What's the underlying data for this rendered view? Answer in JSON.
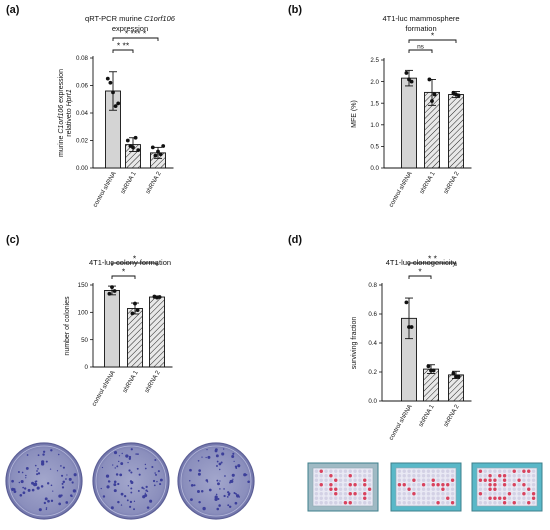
{
  "chart_data": [
    {
      "panel": "(a)",
      "type": "bar",
      "title_lines": [
        "qRT-PCR murine C1orf106",
        "expression"
      ],
      "title_italic_word": "C1orf106",
      "ylabel_lines": [
        "murine C1orf106 expression",
        "relativeto Hprt1"
      ],
      "categories": [
        "control shRNA",
        "shRNA 1",
        "shRNA 2"
      ],
      "values": [
        0.056,
        0.017,
        0.011
      ],
      "errors": [
        0.014,
        0.005,
        0.004
      ],
      "points": [
        [
          0.065,
          0.062,
          0.055,
          0.045,
          0.047
        ],
        [
          0.02,
          0.016,
          0.015,
          0.022,
          0.013
        ],
        [
          0.015,
          0.009,
          0.012,
          0.01,
          0.016
        ]
      ],
      "ylim": [
        0,
        0.08
      ],
      "yticks": [
        "0.00",
        "0.02",
        "0.04",
        "0.06",
        "0.08"
      ],
      "ytick_values": [
        0,
        0.02,
        0.04,
        0.06,
        0.08
      ],
      "significance": [
        {
          "from": 0,
          "to": 1,
          "label": "* **"
        },
        {
          "from": 0,
          "to": 2,
          "label": "* *** *"
        }
      ],
      "hatched": [
        false,
        true,
        true
      ]
    },
    {
      "panel": "(b)",
      "type": "bar",
      "title_lines": [
        "4T1-luc mammosphere",
        "formation"
      ],
      "ylabel_lines": [
        "MFE (%)"
      ],
      "categories": [
        "control shRNA",
        "shRNA 1",
        "shRNA 2"
      ],
      "values": [
        2.08,
        1.75,
        1.7
      ],
      "errors": [
        0.18,
        0.3,
        0.07
      ],
      "points": [
        [
          2.2,
          2.05,
          2.0
        ],
        [
          2.05,
          1.55,
          1.7
        ],
        [
          1.74,
          1.7,
          1.68
        ]
      ],
      "ylim": [
        0,
        2.5
      ],
      "yticks": [
        "0.0",
        "0.5",
        "1.0",
        "1.5",
        "2.0",
        "2.5"
      ],
      "ytick_values": [
        0,
        0.5,
        1.0,
        1.5,
        2.0,
        2.5
      ],
      "significance": [
        {
          "from": 0,
          "to": 1,
          "label": "ns"
        },
        {
          "from": 0,
          "to": 2,
          "label": "*"
        }
      ],
      "hatched": [
        false,
        true,
        true
      ]
    },
    {
      "panel": "(c)",
      "type": "bar",
      "title_lines": [
        "4T1-luc colony formation"
      ],
      "ylabel_lines": [
        "number of colonies"
      ],
      "categories": [
        "control shRNA",
        "shRNA 1",
        "shRNA 2"
      ],
      "values": [
        140,
        107,
        128
      ],
      "errors": [
        8,
        10,
        2
      ],
      "points": [
        [
          134,
          146,
          139
        ],
        [
          98,
          116,
          104
        ],
        [
          129,
          127,
          128
        ]
      ],
      "ylim": [
        0,
        150
      ],
      "yticks": [
        "0",
        "50",
        "100",
        "150"
      ],
      "ytick_values": [
        0,
        50,
        100,
        150
      ],
      "significance": [
        {
          "from": 0,
          "to": 1,
          "label": "*"
        },
        {
          "from": 0,
          "to": 2,
          "label": "*"
        }
      ],
      "hatched": [
        false,
        true,
        true
      ]
    },
    {
      "panel": "(d)",
      "type": "bar",
      "title_lines": [
        "4T1-luc clonogenicity"
      ],
      "ylabel_lines": [
        "surviving fraction"
      ],
      "categories": [
        "control shRNA",
        "shRNA 1",
        "shRNA 2"
      ],
      "values": [
        0.57,
        0.22,
        0.18
      ],
      "errors": [
        0.14,
        0.03,
        0.025
      ],
      "points": [
        [
          0.68,
          0.51,
          0.51
        ],
        [
          0.24,
          0.21,
          0.21
        ],
        [
          0.19,
          0.17,
          0.17
        ]
      ],
      "ylim": [
        0,
        0.8
      ],
      "yticks": [
        "0.0",
        "0.2",
        "0.4",
        "0.6",
        "0.8"
      ],
      "ytick_values": [
        0,
        0.2,
        0.4,
        0.6,
        0.8
      ],
      "significance": [
        {
          "from": 0,
          "to": 1,
          "label": "*"
        },
        {
          "from": 0,
          "to": 2,
          "label": "* *"
        }
      ],
      "hatched": [
        false,
        true,
        true
      ]
    }
  ],
  "colors": {
    "bar_fill": "#d4d4d4",
    "hatch_fill": "#e8e8e8",
    "stroke": "#111111",
    "plate_bg": "#8f93bd",
    "plate_colony": "#3c3f9a",
    "well_frame": "#59b8c8",
    "well_red": "#d6304c"
  },
  "photos": {
    "c_plates": [
      "petri-dish-control",
      "petri-dish-shrna-1",
      "petri-dish-shrna-2"
    ],
    "d_wells": [
      "96-well-plate-control",
      "96-well-plate-shrna-1",
      "96-well-plate-shrna-2"
    ]
  }
}
